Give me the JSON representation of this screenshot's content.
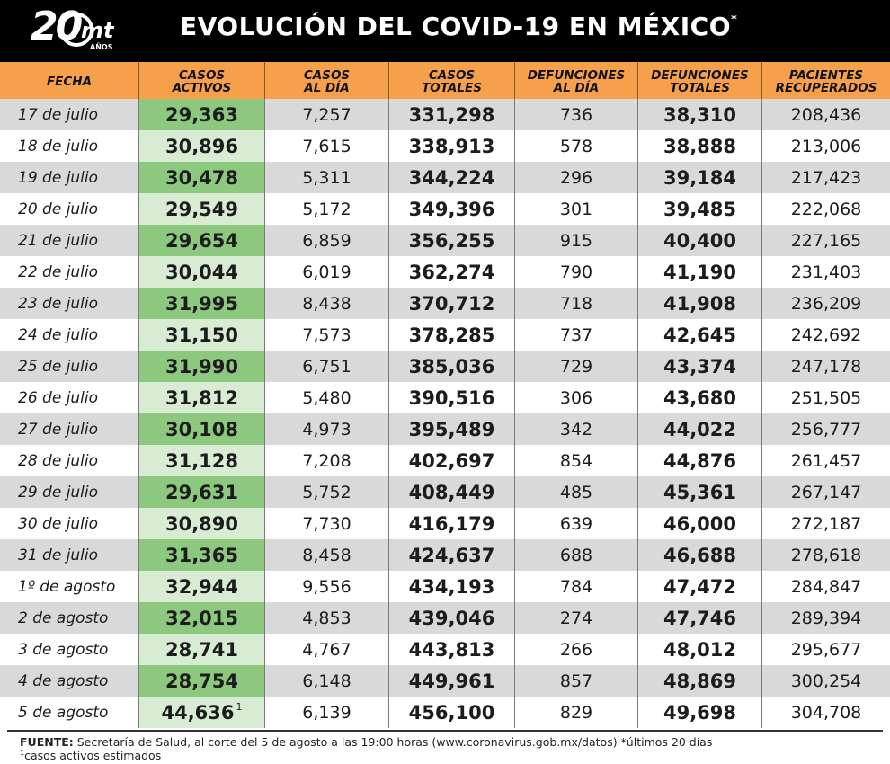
{
  "header": {
    "logo": {
      "number": "20",
      "mark": "mt",
      "years": "AÑOS"
    },
    "title": "EVOLUCIÓN DEL COVID-19 EN MÉXICO",
    "title_mark": "*"
  },
  "columns": [
    {
      "label": "FECHA",
      "width": 155
    },
    {
      "label": "CASOS ACTIVOS",
      "width": 140
    },
    {
      "label": "CASOS AL DÍA",
      "width": 138
    },
    {
      "label": "CASOS TOTALES",
      "width": 140
    },
    {
      "label": "DEFUNCIONES AL DÍA",
      "width": 137
    },
    {
      "label": "DEFUNCIONES TOTALES",
      "width": 138
    },
    {
      "label": "PACIENTES RECUPERADOS",
      "width": 142
    }
  ],
  "rows": [
    {
      "fecha": "17 de julio",
      "activos": "29,363",
      "casos_dia": "7,257",
      "casos_totales": "331,298",
      "def_dia": "736",
      "def_totales": "38,310",
      "recuperados": "208,436"
    },
    {
      "fecha": "18 de julio",
      "activos": "30,896",
      "casos_dia": "7,615",
      "casos_totales": "338,913",
      "def_dia": "578",
      "def_totales": "38,888",
      "recuperados": "213,006"
    },
    {
      "fecha": "19 de julio",
      "activos": "30,478",
      "casos_dia": "5,311",
      "casos_totales": "344,224",
      "def_dia": "296",
      "def_totales": "39,184",
      "recuperados": "217,423"
    },
    {
      "fecha": "20 de julio",
      "activos": "29,549",
      "casos_dia": "5,172",
      "casos_totales": "349,396",
      "def_dia": "301",
      "def_totales": "39,485",
      "recuperados": "222,068"
    },
    {
      "fecha": "21 de julio",
      "activos": "29,654",
      "casos_dia": "6,859",
      "casos_totales": "356,255",
      "def_dia": "915",
      "def_totales": "40,400",
      "recuperados": "227,165"
    },
    {
      "fecha": "22 de julio",
      "activos": "30,044",
      "casos_dia": "6,019",
      "casos_totales": "362,274",
      "def_dia": "790",
      "def_totales": "41,190",
      "recuperados": "231,403"
    },
    {
      "fecha": "23 de julio",
      "activos": "31,995",
      "casos_dia": "8,438",
      "casos_totales": "370,712",
      "def_dia": "718",
      "def_totales": "41,908",
      "recuperados": "236,209"
    },
    {
      "fecha": "24 de julio",
      "activos": "31,150",
      "casos_dia": "7,573",
      "casos_totales": "378,285",
      "def_dia": "737",
      "def_totales": "42,645",
      "recuperados": "242,692"
    },
    {
      "fecha": "25 de julio",
      "activos": "31,990",
      "casos_dia": "6,751",
      "casos_totales": "385,036",
      "def_dia": "729",
      "def_totales": "43,374",
      "recuperados": "247,178"
    },
    {
      "fecha": "26 de julio",
      "activos": "31,812",
      "casos_dia": "5,480",
      "casos_totales": "390,516",
      "def_dia": "306",
      "def_totales": "43,680",
      "recuperados": "251,505"
    },
    {
      "fecha": "27 de julio",
      "activos": "30,108",
      "casos_dia": "4,973",
      "casos_totales": "395,489",
      "def_dia": "342",
      "def_totales": "44,022",
      "recuperados": "256,777"
    },
    {
      "fecha": "28 de julio",
      "activos": "31,128",
      "casos_dia": "7,208",
      "casos_totales": "402,697",
      "def_dia": "854",
      "def_totales": "44,876",
      "recuperados": "261,457"
    },
    {
      "fecha": "29 de julio",
      "activos": "29,631",
      "casos_dia": "5,752",
      "casos_totales": "408,449",
      "def_dia": "485",
      "def_totales": "45,361",
      "recuperados": "267,147"
    },
    {
      "fecha": "30 de julio",
      "activos": "30,890",
      "casos_dia": "7,730",
      "casos_totales": "416,179",
      "def_dia": "639",
      "def_totales": "46,000",
      "recuperados": "272,187"
    },
    {
      "fecha": "31 de julio",
      "activos": "31,365",
      "casos_dia": "8,458",
      "casos_totales": "424,637",
      "def_dia": "688",
      "def_totales": "46,688",
      "recuperados": "278,618"
    },
    {
      "fecha": "1º de agosto",
      "activos": "32,944",
      "casos_dia": "9,556",
      "casos_totales": "434,193",
      "def_dia": "784",
      "def_totales": "47,472",
      "recuperados": "284,847"
    },
    {
      "fecha": "2 de agosto",
      "activos": "32,015",
      "casos_dia": "4,853",
      "casos_totales": "439,046",
      "def_dia": "274",
      "def_totales": "47,746",
      "recuperados": "289,394"
    },
    {
      "fecha": "3 de agosto",
      "activos": "28,741",
      "casos_dia": "4,767",
      "casos_totales": "443,813",
      "def_dia": "266",
      "def_totales": "48,012",
      "recuperados": "295,677"
    },
    {
      "fecha": "4 de agosto",
      "activos": "28,754",
      "casos_dia": "6,148",
      "casos_totales": "449,961",
      "def_dia": "857",
      "def_totales": "48,869",
      "recuperados": "300,254"
    },
    {
      "fecha": "5 de agosto",
      "activos": "44,636",
      "activos_mark": "1",
      "casos_dia": "6,139",
      "casos_totales": "456,100",
      "def_dia": "829",
      "def_totales": "49,698",
      "recuperados": "304,708"
    }
  ],
  "footer": {
    "source_label": "FUENTE:",
    "source_text": " Secretaría de Salud, al corte del 5 de agosto a las 19:00 horas (www.coronavirus.gob.mx/datos) *últimos 20 días",
    "note_mark": "1",
    "note_text": "casos activos estimados"
  },
  "colors": {
    "header_bg": "#000000",
    "column_header_bg": "#f6a04b",
    "active_dark": "#8cc97e",
    "active_light": "#d7ecd2",
    "row_gray": "#d9d9d9"
  }
}
